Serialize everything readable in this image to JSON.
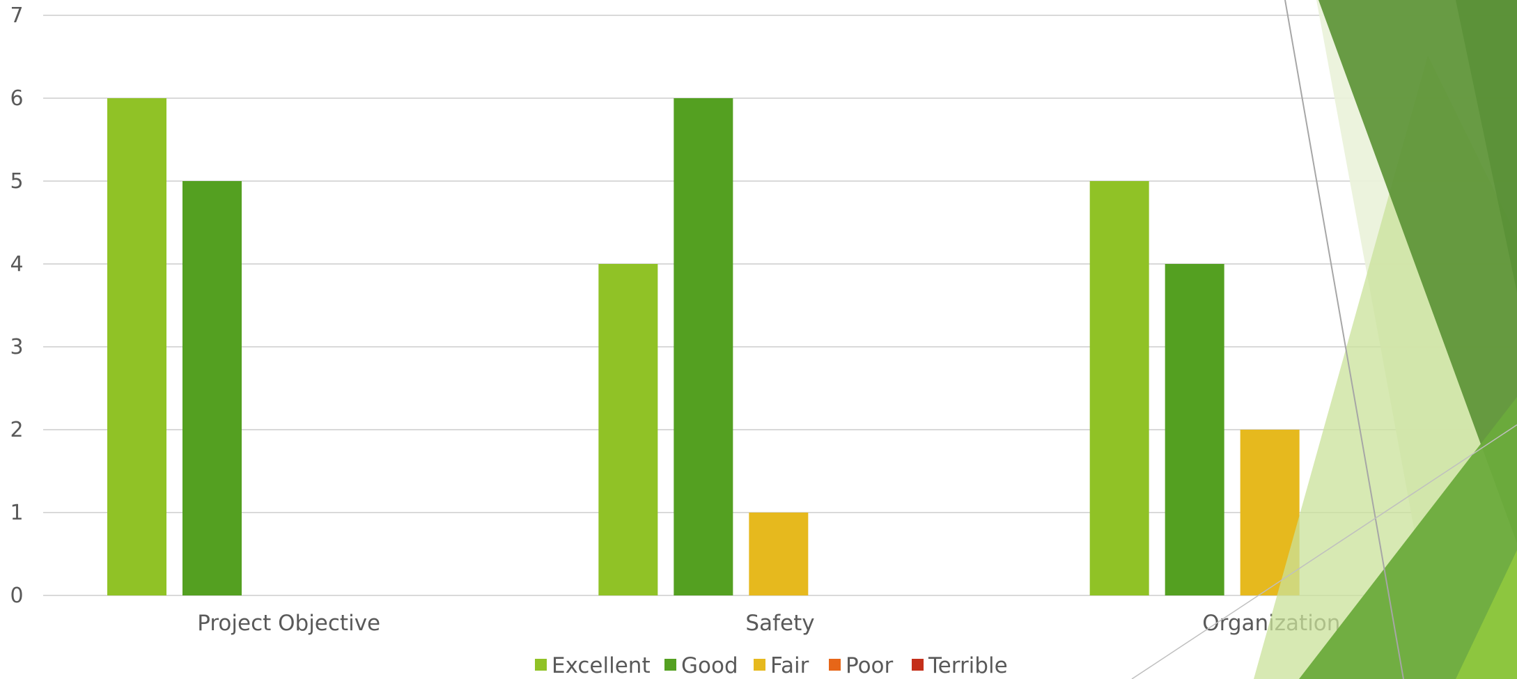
{
  "slide": {
    "colors": {
      "accent_light_green": "#90C226",
      "accent_green": "#54A021",
      "accent_gold": "#E6B91E",
      "accent_orange": "#E76618",
      "accent_red": "#C42F1A",
      "gridline": "#D9D9D9",
      "text": "#595959"
    }
  },
  "chart_data": {
    "type": "bar",
    "title": "",
    "xlabel": "",
    "ylabel": "",
    "categories": [
      "Project Objective",
      "Safety",
      "Organization"
    ],
    "series": [
      {
        "name": "Excellent",
        "values": [
          6,
          4,
          5
        ],
        "color": "#90C226"
      },
      {
        "name": "Good",
        "values": [
          5,
          6,
          4
        ],
        "color": "#54A021"
      },
      {
        "name": "Fair",
        "values": [
          0,
          1,
          2
        ],
        "color": "#E6B91E"
      },
      {
        "name": "Poor",
        "values": [
          0,
          0,
          0
        ],
        "color": "#E76618"
      },
      {
        "name": "Terrible",
        "values": [
          0,
          0,
          0
        ],
        "color": "#C42F1A"
      }
    ],
    "ylim": [
      0,
      7
    ],
    "yticks": [
      "0",
      "1",
      "2",
      "3",
      "4",
      "5",
      "6",
      "7"
    ],
    "grid": true,
    "legend_position": "bottom"
  }
}
